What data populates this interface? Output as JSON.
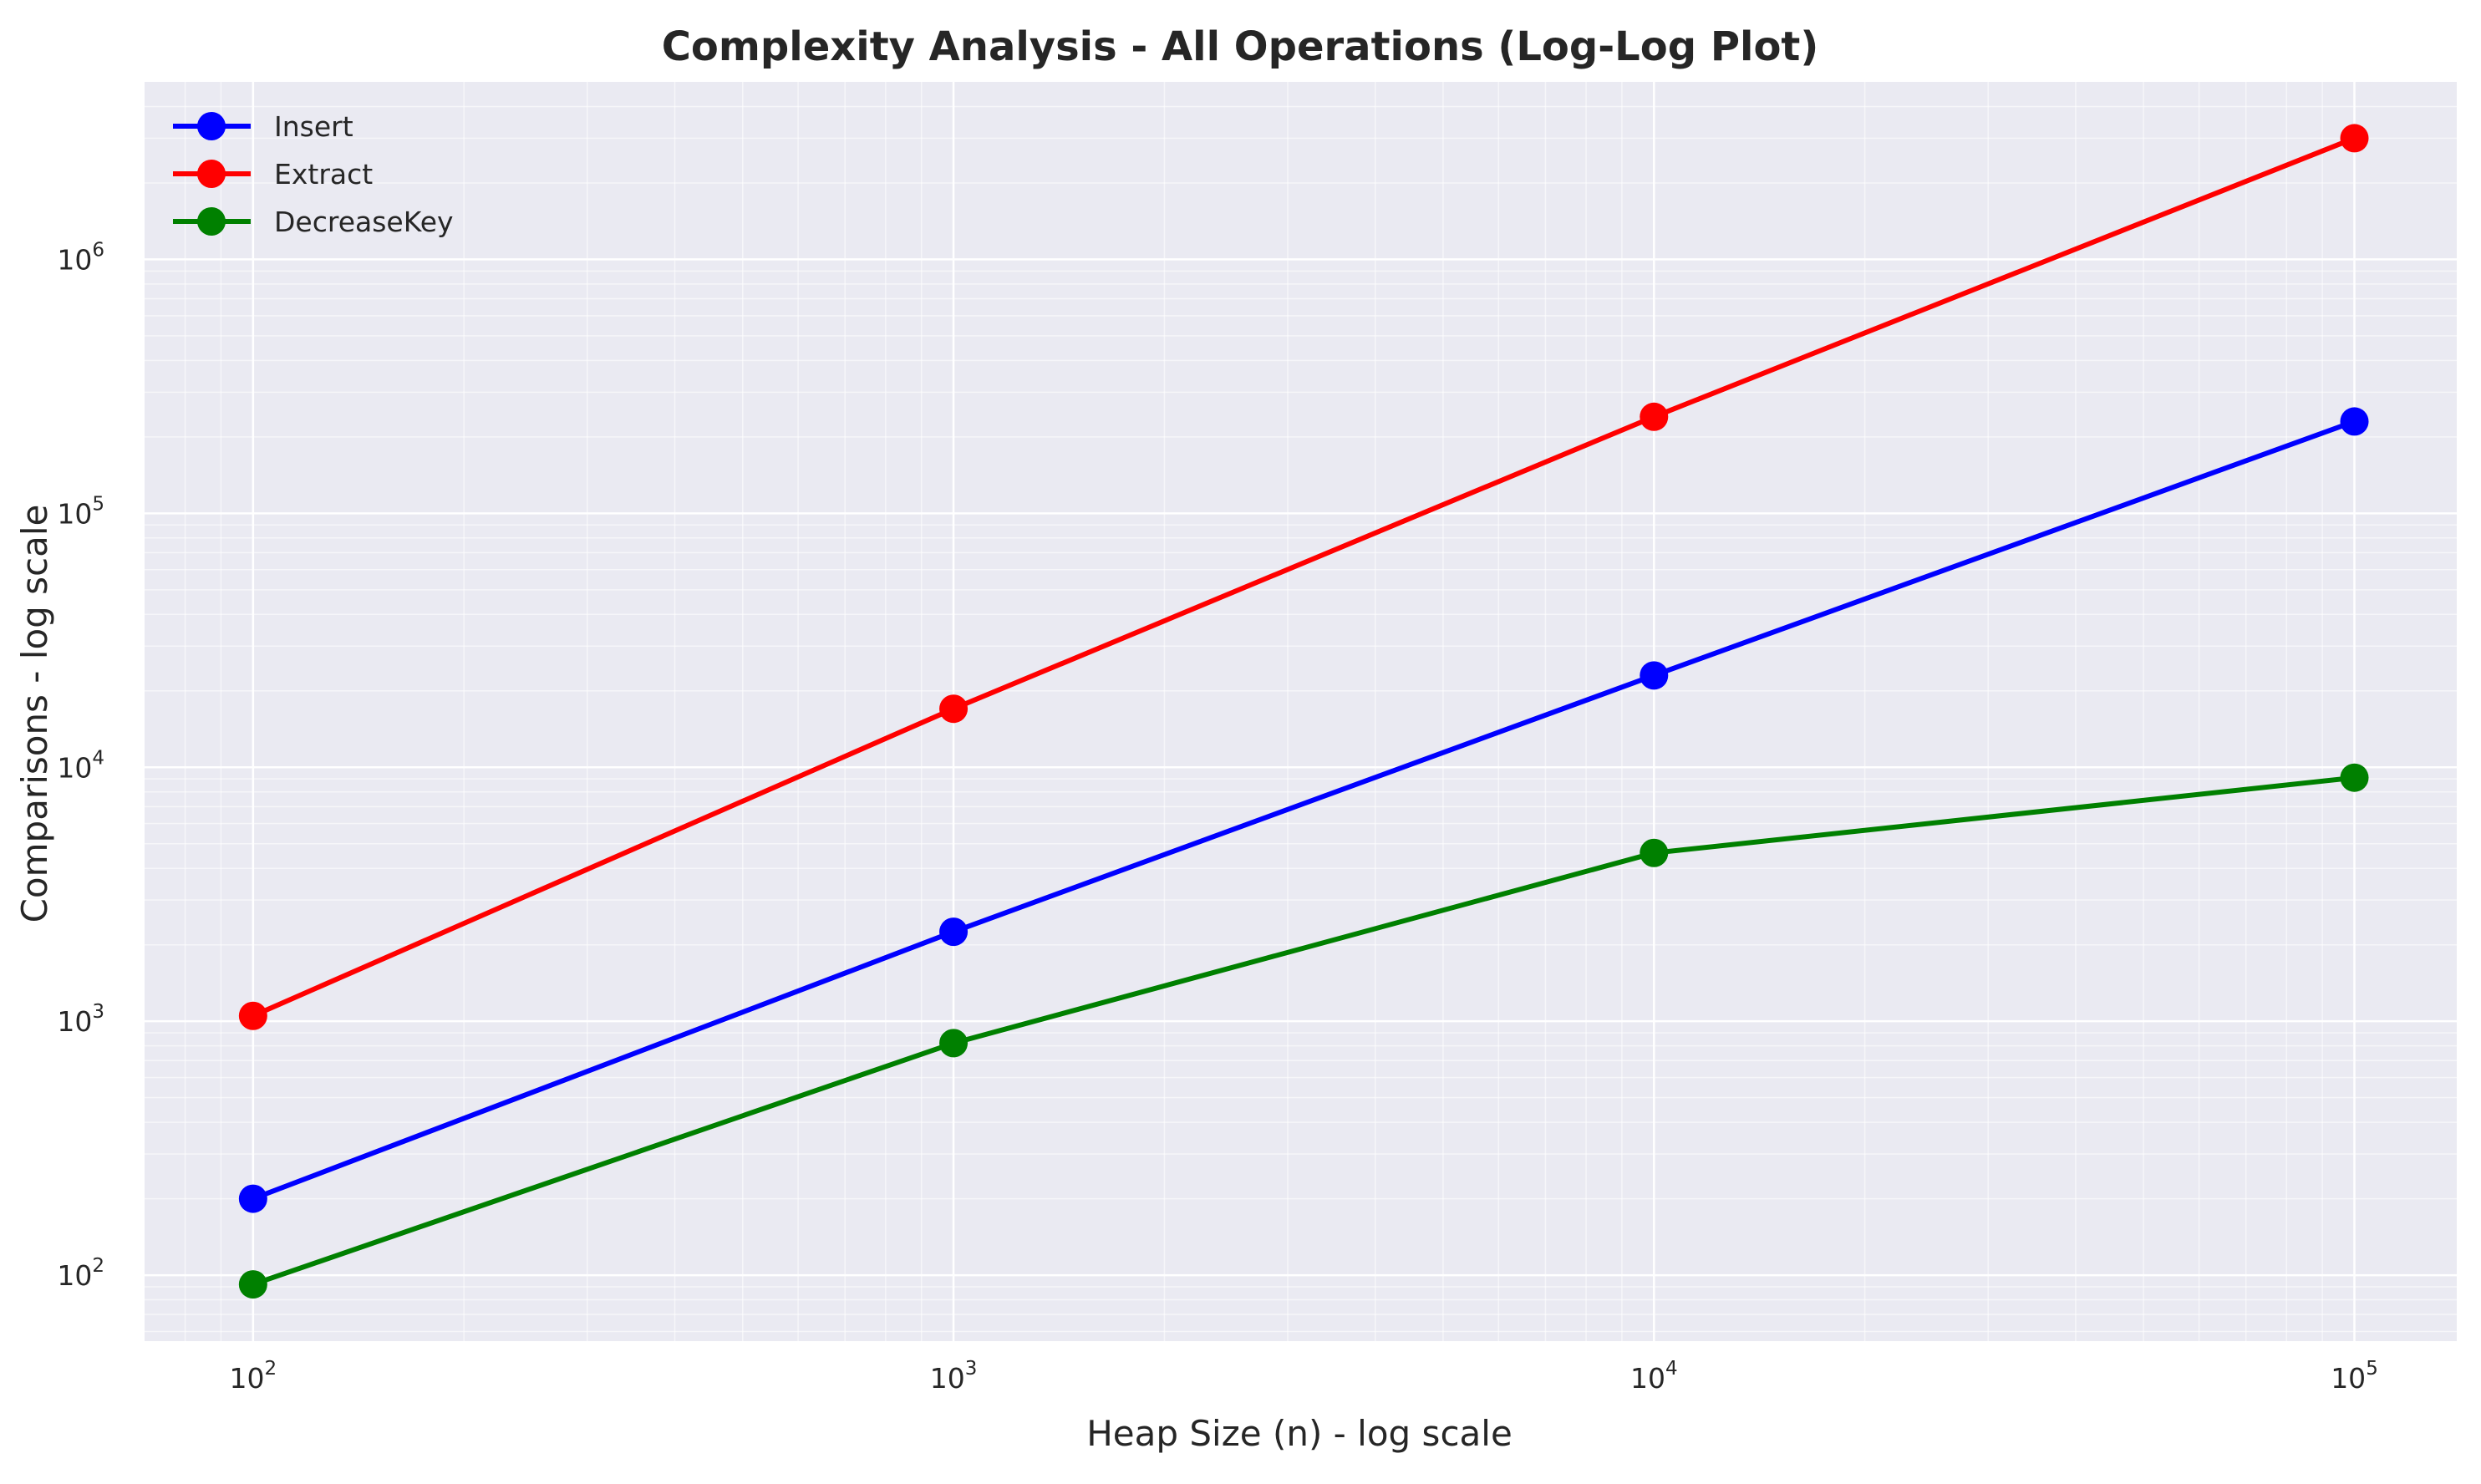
{
  "chart_data": {
    "type": "line",
    "title": "Complexity Analysis - All Operations (Log-Log Plot)",
    "xlabel": "Heap Size (n) - log scale",
    "ylabel": "Comparisons - log scale",
    "xscale": "log",
    "yscale": "log",
    "xlim": [
      70,
      140000
    ],
    "ylim": [
      55,
      5000000
    ],
    "x": [
      100,
      1000,
      10000,
      100000
    ],
    "xticks": [
      {
        "value": 100,
        "base": "10",
        "exp": "2"
      },
      {
        "value": 1000,
        "base": "10",
        "exp": "3"
      },
      {
        "value": 10000,
        "base": "10",
        "exp": "4"
      },
      {
        "value": 100000,
        "base": "10",
        "exp": "5"
      }
    ],
    "yticks": [
      {
        "value": 100,
        "base": "10",
        "exp": "2"
      },
      {
        "value": 1000,
        "base": "10",
        "exp": "3"
      },
      {
        "value": 10000,
        "base": "10",
        "exp": "4"
      },
      {
        "value": 100000,
        "base": "10",
        "exp": "5"
      },
      {
        "value": 1000000,
        "base": "10",
        "exp": "6"
      }
    ],
    "series": [
      {
        "name": "Insert",
        "color": "#0000ff",
        "values": [
          200,
          2250,
          23000,
          230000
        ]
      },
      {
        "name": "Extract",
        "color": "#ff0000",
        "values": [
          1050,
          17000,
          240000,
          3000000
        ]
      },
      {
        "name": "DecreaseKey",
        "color": "#008000",
        "values": [
          92,
          820,
          4600,
          9100
        ]
      }
    ],
    "grid": true,
    "minor_grid": true,
    "legend_position": "upper-left",
    "plot_background": "#eaeaf2"
  }
}
